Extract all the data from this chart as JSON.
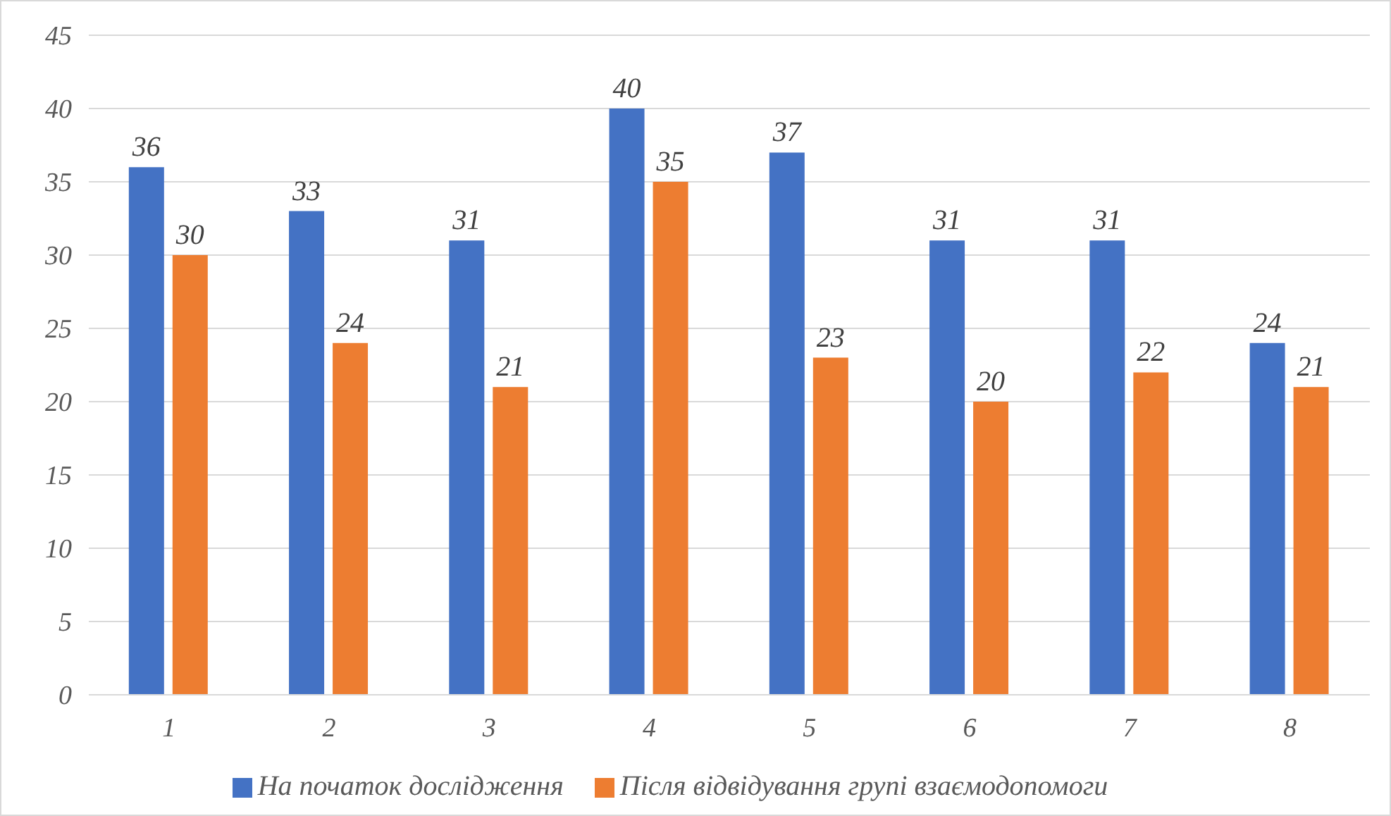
{
  "chart_data": {
    "type": "bar",
    "categories": [
      "1",
      "2",
      "3",
      "4",
      "5",
      "6",
      "7",
      "8"
    ],
    "series": [
      {
        "name": "На початок дослідження",
        "color": "#4472c4",
        "values": [
          36,
          33,
          31,
          40,
          37,
          31,
          31,
          24
        ]
      },
      {
        "name": "Після відвідування групі взаємодопомоги",
        "color": "#ed7d31",
        "values": [
          30,
          24,
          21,
          35,
          23,
          20,
          22,
          21
        ]
      }
    ],
    "ylim": [
      0,
      45
    ],
    "yticks": [
      0,
      5,
      10,
      15,
      20,
      25,
      30,
      35,
      40,
      45
    ],
    "grid": "y",
    "legend": "bottom",
    "data_labels": true
  }
}
